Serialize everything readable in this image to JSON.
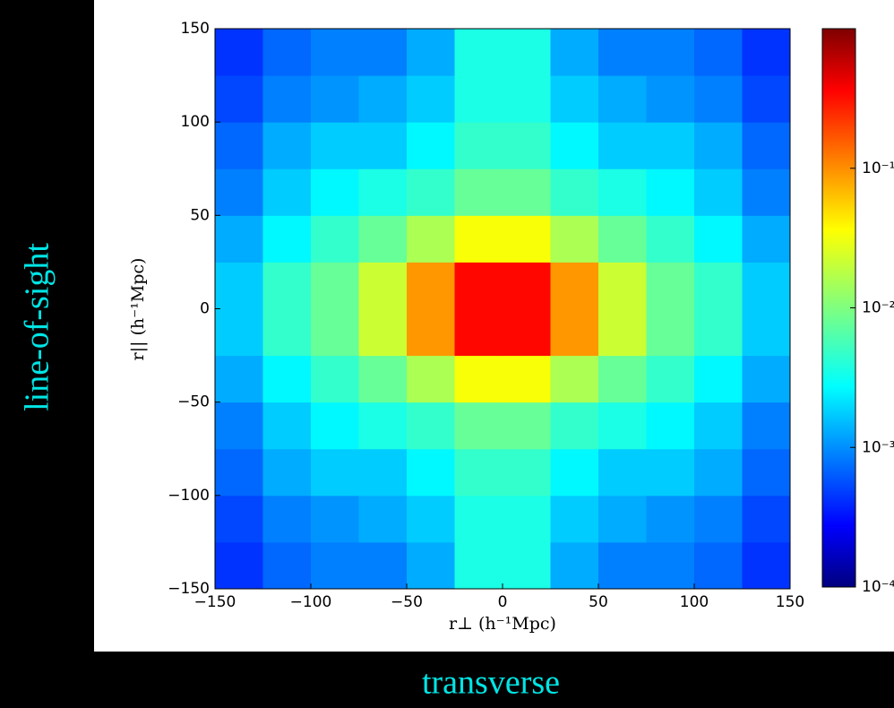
{
  "chart_data": {
    "type": "heatmap",
    "x_label": "r⊥  (h⁻¹Mpc)",
    "y_label": "r||  (h⁻¹Mpc)",
    "x_side_label": "transverse",
    "y_side_label": "line-of-sight",
    "x_bins": [
      -150,
      -125,
      -100,
      -75,
      -50,
      -25,
      0,
      25,
      50,
      75,
      100,
      125,
      150
    ],
    "y_bins": [
      -150,
      -125,
      -100,
      -75,
      -50,
      -25,
      0,
      25,
      50,
      75,
      100,
      125,
      150
    ],
    "values": [
      [
        0.0005,
        0.0008,
        0.001,
        0.001,
        0.0015,
        0.004,
        0.004,
        0.0015,
        0.001,
        0.001,
        0.0008,
        0.0005
      ],
      [
        0.0006,
        0.001,
        0.0012,
        0.0015,
        0.002,
        0.004,
        0.004,
        0.002,
        0.0015,
        0.0012,
        0.001,
        0.0006
      ],
      [
        0.0008,
        0.0015,
        0.002,
        0.002,
        0.003,
        0.005,
        0.005,
        0.003,
        0.002,
        0.002,
        0.0015,
        0.0008
      ],
      [
        0.001,
        0.002,
        0.003,
        0.004,
        0.005,
        0.008,
        0.008,
        0.005,
        0.004,
        0.003,
        0.002,
        0.001
      ],
      [
        0.0015,
        0.003,
        0.005,
        0.008,
        0.015,
        0.03,
        0.03,
        0.015,
        0.008,
        0.005,
        0.003,
        0.0015
      ],
      [
        0.002,
        0.005,
        0.008,
        0.02,
        0.08,
        0.3,
        0.3,
        0.08,
        0.02,
        0.008,
        0.005,
        0.002
      ],
      [
        0.002,
        0.005,
        0.008,
        0.02,
        0.08,
        0.3,
        0.3,
        0.08,
        0.02,
        0.008,
        0.005,
        0.002
      ],
      [
        0.0015,
        0.003,
        0.005,
        0.008,
        0.015,
        0.03,
        0.03,
        0.015,
        0.008,
        0.005,
        0.003,
        0.0015
      ],
      [
        0.001,
        0.002,
        0.003,
        0.004,
        0.005,
        0.008,
        0.008,
        0.005,
        0.004,
        0.003,
        0.002,
        0.001
      ],
      [
        0.0008,
        0.0015,
        0.002,
        0.002,
        0.003,
        0.005,
        0.005,
        0.003,
        0.002,
        0.002,
        0.0015,
        0.0008
      ],
      [
        0.0006,
        0.001,
        0.0012,
        0.0015,
        0.002,
        0.004,
        0.004,
        0.002,
        0.0015,
        0.0012,
        0.001,
        0.0006
      ],
      [
        0.0005,
        0.0008,
        0.001,
        0.001,
        0.0015,
        0.004,
        0.004,
        0.0015,
        0.001,
        0.001,
        0.0008,
        0.0005
      ]
    ],
    "xlim": [
      -150,
      150
    ],
    "ylim": [
      -150,
      150
    ],
    "xticks": [
      {
        "value": -150,
        "label": "−150"
      },
      {
        "value": -100,
        "label": "−100"
      },
      {
        "value": -50,
        "label": "−50"
      },
      0,
      50,
      100,
      150
    ],
    "yticks": [
      {
        "value": -150,
        "label": "−150"
      },
      {
        "value": -100,
        "label": "−100"
      },
      {
        "value": -50,
        "label": "−50"
      },
      0,
      50,
      100,
      150
    ],
    "colormap": "jet",
    "colorbar": {
      "scale": "log",
      "lim": [
        0.0001,
        1
      ],
      "ticks": [
        {
          "value": 0.1,
          "label": "10⁻¹"
        },
        {
          "value": 0.01,
          "label": "10⁻²"
        },
        {
          "value": 0.001,
          "label": "10⁻³"
        },
        {
          "value": 0.0001,
          "label": "10⁻⁴"
        }
      ]
    }
  }
}
